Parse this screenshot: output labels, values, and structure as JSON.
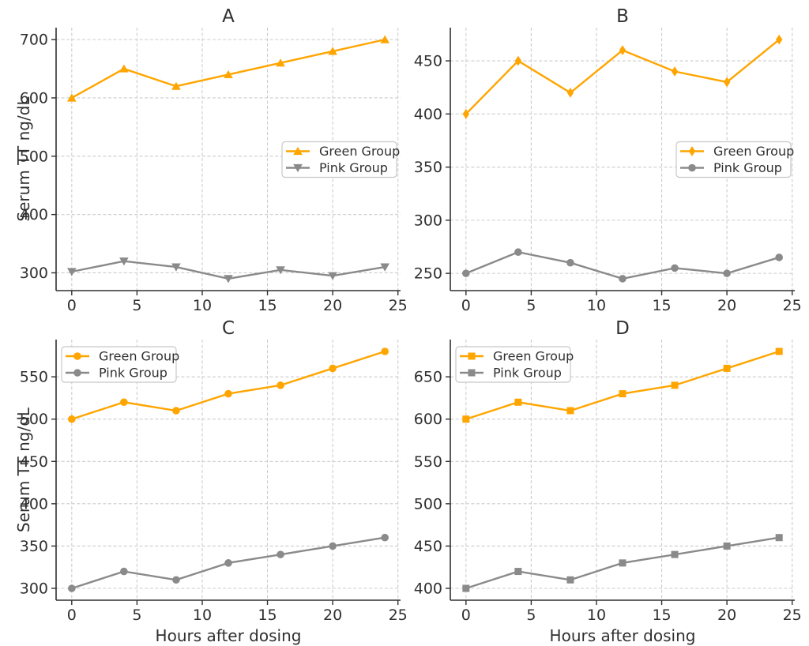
{
  "figure": {
    "background": "#ffffff",
    "colors": {
      "green_group": "#FFA500",
      "pink_group": "#8A8A8A",
      "grid": "#CCCCCC",
      "spine": "#303030",
      "text": "#303030",
      "legend_border": "#C8C8C8",
      "legend_bg": "#FFFFFF"
    }
  },
  "chart_data": [
    {
      "id": "A",
      "type": "line",
      "title": "A",
      "xlabel": "",
      "ylabel": "Serum TT ng/dL",
      "x": [
        0,
        4,
        8,
        12,
        16,
        20,
        24
      ],
      "xticks": [
        0,
        5,
        10,
        15,
        20,
        25
      ],
      "yticks": [
        300,
        400,
        500,
        600,
        700
      ],
      "xlim": [
        -1.2,
        25.2
      ],
      "ylim": [
        269.5,
        720.5
      ],
      "grid": "dashed",
      "legend_position": "center-right",
      "series": [
        {
          "name": "Green Group",
          "color": "#FFA500",
          "marker": "triangle-up",
          "values": [
            600,
            650,
            620,
            640,
            660,
            680,
            700
          ]
        },
        {
          "name": "Pink Group",
          "color": "#8A8A8A",
          "marker": "triangle-down",
          "values": [
            302,
            320,
            310,
            290,
            305,
            295,
            310
          ]
        }
      ]
    },
    {
      "id": "B",
      "type": "line",
      "title": "B",
      "xlabel": "",
      "ylabel": "",
      "x": [
        0,
        4,
        8,
        12,
        16,
        20,
        24
      ],
      "xticks": [
        0,
        5,
        10,
        15,
        20,
        25
      ],
      "yticks": [
        250,
        300,
        350,
        400,
        450
      ],
      "xlim": [
        -1.2,
        25.2
      ],
      "ylim": [
        233.75,
        481.25
      ],
      "grid": "dashed",
      "legend_position": "center-right",
      "series": [
        {
          "name": "Green Group",
          "color": "#FFA500",
          "marker": "thin-diamond",
          "values": [
            400,
            450,
            420,
            460,
            440,
            430,
            470
          ]
        },
        {
          "name": "Pink Group",
          "color": "#8A8A8A",
          "marker": "circle",
          "values": [
            250,
            270,
            260,
            245,
            255,
            250,
            265
          ]
        }
      ]
    },
    {
      "id": "C",
      "type": "line",
      "title": "C",
      "xlabel": "Hours after dosing",
      "ylabel": "Serum TT ng/dL",
      "x": [
        0,
        4,
        8,
        12,
        16,
        20,
        24
      ],
      "xticks": [
        0,
        5,
        10,
        15,
        20,
        25
      ],
      "yticks": [
        300,
        350,
        400,
        450,
        500,
        550
      ],
      "xlim": [
        -1.2,
        25.2
      ],
      "ylim": [
        286,
        594
      ],
      "grid": "dashed",
      "legend_position": "top-left",
      "series": [
        {
          "name": "Green Group",
          "color": "#FFA500",
          "marker": "circle",
          "values": [
            500,
            520,
            510,
            530,
            540,
            560,
            580
          ]
        },
        {
          "name": "Pink Group",
          "color": "#8A8A8A",
          "marker": "circle",
          "values": [
            300,
            320,
            310,
            330,
            340,
            350,
            360
          ]
        }
      ]
    },
    {
      "id": "D",
      "type": "line",
      "title": "D",
      "xlabel": "Hours after dosing",
      "ylabel": "",
      "x": [
        0,
        4,
        8,
        12,
        16,
        20,
        24
      ],
      "xticks": [
        0,
        5,
        10,
        15,
        20,
        25
      ],
      "yticks": [
        400,
        450,
        500,
        550,
        600,
        650
      ],
      "xlim": [
        -1.2,
        25.2
      ],
      "ylim": [
        386,
        694
      ],
      "grid": "dashed",
      "legend_position": "top-left",
      "series": [
        {
          "name": "Green Group",
          "color": "#FFA500",
          "marker": "square",
          "values": [
            600,
            620,
            610,
            630,
            640,
            660,
            680
          ]
        },
        {
          "name": "Pink Group",
          "color": "#8A8A8A",
          "marker": "square",
          "values": [
            400,
            420,
            410,
            430,
            440,
            450,
            460
          ]
        }
      ]
    }
  ]
}
